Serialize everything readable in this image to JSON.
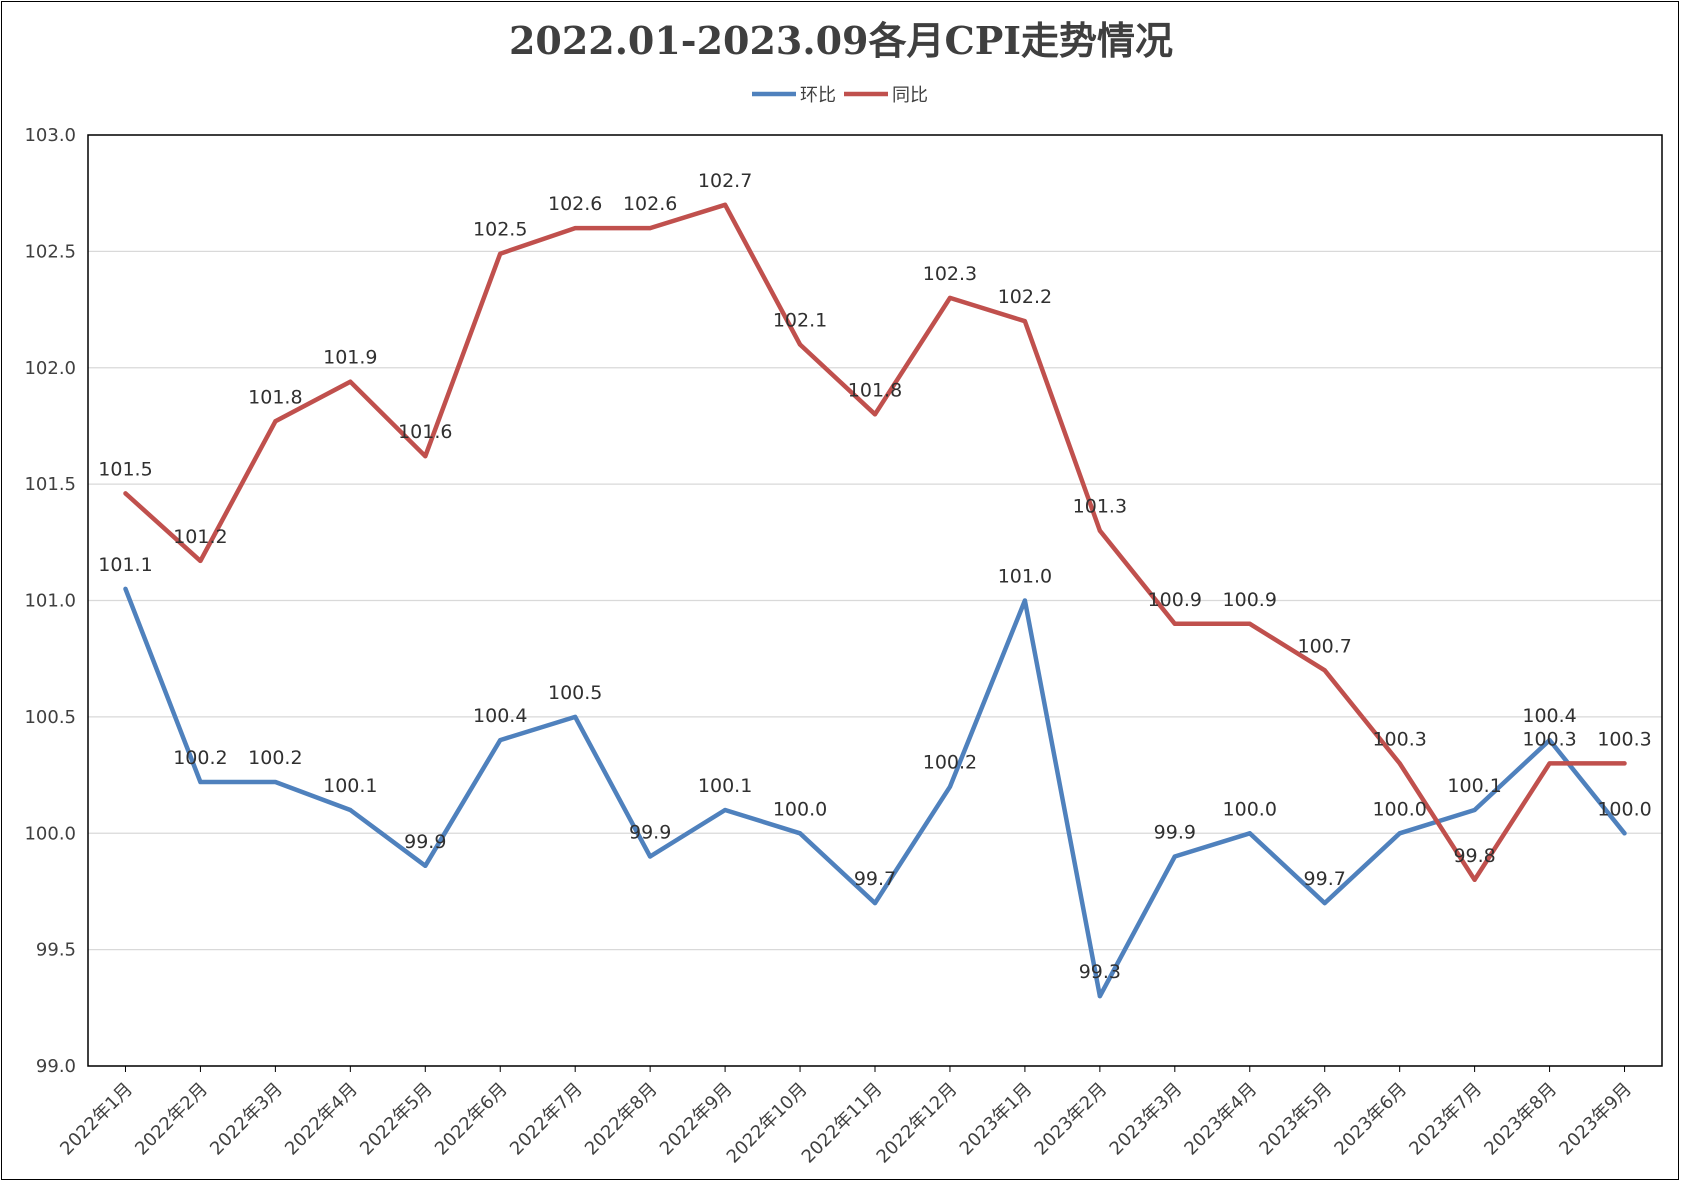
{
  "chart_data": {
    "type": "line",
    "title": "2022.01-2023.09各月CPI走势情况",
    "legend_position": "top",
    "grid": true,
    "ylim": [
      99.0,
      103.0
    ],
    "yticks": [
      "99.0",
      "99.5",
      "100.0",
      "100.5",
      "101.0",
      "101.5",
      "102.0",
      "102.5",
      "103.0"
    ],
    "categories": [
      "2022年1月",
      "2022年2月",
      "2022年3月",
      "2022年4月",
      "2022年5月",
      "2022年6月",
      "2022年7月",
      "2022年8月",
      "2022年9月",
      "2022年10月",
      "2022年11月",
      "2022年12月",
      "2023年1月",
      "2023年2月",
      "2023年3月",
      "2023年4月",
      "2023年5月",
      "2023年6月",
      "2023年7月",
      "2023年8月",
      "2023年9月"
    ],
    "series": [
      {
        "name": "环比",
        "color": "#4f81bd",
        "values": [
          101.05,
          100.22,
          100.22,
          100.1,
          99.86,
          100.4,
          100.5,
          99.9,
          100.1,
          100.0,
          99.7,
          100.2,
          101.0,
          99.3,
          99.9,
          100.0,
          99.7,
          100.0,
          100.1,
          100.4,
          100.0
        ],
        "labels": [
          "101.1",
          "100.2",
          "100.2",
          "100.1",
          "99.9",
          "100.4",
          "100.5",
          "99.9",
          "100.1",
          "100.0",
          "99.7",
          "100.2",
          "101.0",
          "99.3",
          "99.9",
          "100.0",
          "99.7",
          "100.0",
          "100.1",
          "100.4",
          "100.0"
        ]
      },
      {
        "name": "同比",
        "color": "#c0504d",
        "values": [
          101.46,
          101.17,
          101.77,
          101.94,
          101.62,
          102.49,
          102.6,
          102.6,
          102.7,
          102.1,
          101.8,
          102.3,
          102.2,
          101.3,
          100.9,
          100.9,
          100.7,
          100.3,
          99.8,
          100.3,
          100.3
        ],
        "labels": [
          "101.5",
          "101.2",
          "101.8",
          "101.9",
          "101.6",
          "102.5",
          "102.6",
          "102.6",
          "102.7",
          "102.1",
          "101.8",
          "102.3",
          "102.2",
          "101.3",
          "100.9",
          "100.9",
          "100.7",
          "100.3",
          "99.8",
          "100.3",
          "100.3"
        ]
      }
    ]
  }
}
